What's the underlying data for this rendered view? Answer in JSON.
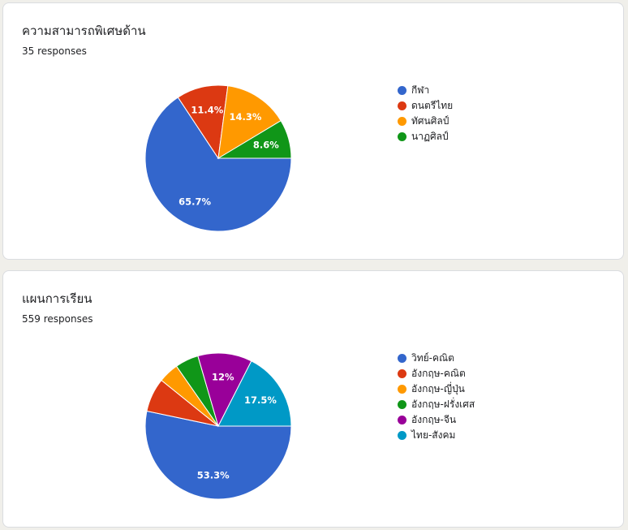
{
  "chart_data": [
    {
      "type": "pie",
      "title": "ความสามารถพิเศษด้าน",
      "response_count": "35 responses",
      "legend_position": "right",
      "slices": [
        {
          "label": "กีฬา",
          "value": 65.7,
          "value_label": "65.7%",
          "color": "#3366cc"
        },
        {
          "label": "ดนตรีไทย",
          "value": 11.4,
          "value_label": "11.4%",
          "color": "#dc3912"
        },
        {
          "label": "ทัศนศิลป์",
          "value": 14.3,
          "value_label": "14.3%",
          "color": "#ff9900"
        },
        {
          "label": "นาฏศิลป์",
          "value": 8.6,
          "value_label": "8.6%",
          "color": "#109618"
        }
      ]
    },
    {
      "type": "pie",
      "title": "แผนการเรียน",
      "response_count": "559 responses",
      "legend_position": "right",
      "slices": [
        {
          "label": "วิทย์-คณิต",
          "value": 53.3,
          "value_label": "53.3%",
          "color": "#3366cc"
        },
        {
          "label": "อังกฤษ-คณิต",
          "value": 7.5,
          "value_label": "",
          "color": "#dc3912"
        },
        {
          "label": "อังกฤษ-ญี่ปุ่น",
          "value": 4.5,
          "value_label": "",
          "color": "#ff9900"
        },
        {
          "label": "อังกฤษ-ฝรั่งเศส",
          "value": 5.2,
          "value_label": "",
          "color": "#109618"
        },
        {
          "label": "อังกฤษ-จีน",
          "value": 12,
          "value_label": "12%",
          "color": "#990099"
        },
        {
          "label": "ไทย-สังคม",
          "value": 17.5,
          "value_label": "17.5%",
          "color": "#0099c6"
        }
      ]
    }
  ]
}
